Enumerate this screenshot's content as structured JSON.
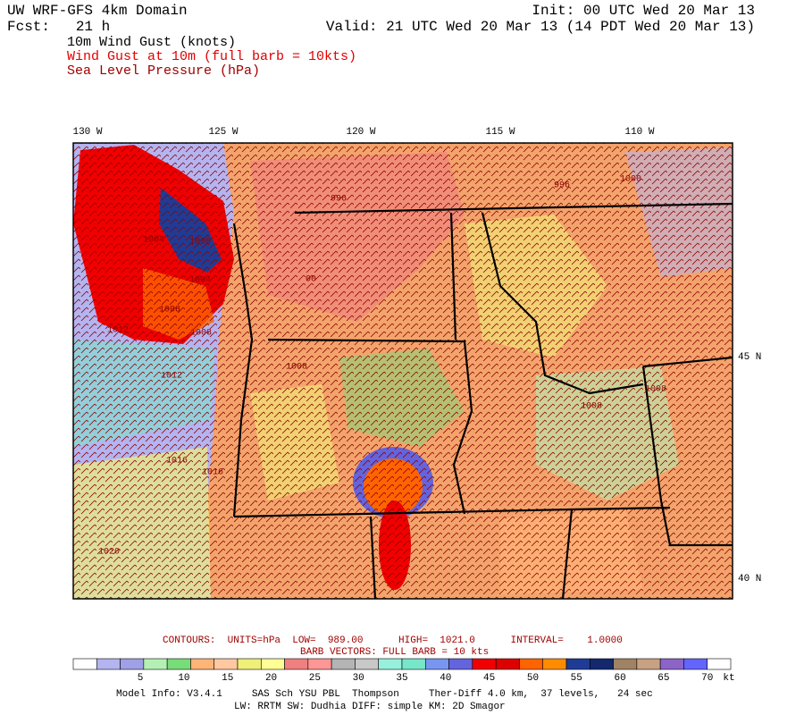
{
  "header": {
    "left": [
      "UW WRF-GFS 4km Domain",
      "Fcst:   21 h"
    ],
    "right": [
      "Init: 00 UTC Wed 20 Mar 13",
      "Valid: 21 UTC Wed 20 Mar 13 (14 PDT Wed 20 Mar 13)"
    ],
    "fields": [
      "10m Wind Gust (knots)",
      "Wind Gust at 10m (full barb = 10kts)",
      "Sea Level Pressure (hPa)"
    ]
  },
  "map": {
    "longitude_labels": [
      "130 W",
      "125 W",
      "120 W",
      "115 W",
      "110 W"
    ],
    "latitude_labels": [
      "45 N",
      "40 N"
    ],
    "contour_labels": [
      "996",
      "996",
      "1000",
      "1004",
      "1000",
      "1004",
      "1008",
      "1012",
      "1008",
      "1008",
      "1012",
      "1016",
      "1016",
      "1020",
      "1008",
      "1008",
      "00"
    ]
  },
  "footer": {
    "contours": "CONTOURS:  UNITS=hPa  LOW=  989.00      HIGH=  1021.0      INTERVAL=    1.0000",
    "barbs": "BARB VECTORS:  FULL BARB = 10 kts",
    "colorbar": {
      "labels": [
        5,
        10,
        15,
        20,
        25,
        30,
        35,
        40,
        45,
        50,
        55,
        60,
        65,
        70
      ],
      "unit": "kt",
      "colors": [
        "#ffffff",
        "#b4b4f0",
        "#a0a0e6",
        "#b4f0b4",
        "#78dc78",
        "#ffb478",
        "#ffc8a0",
        "#f0f078",
        "#ffff96",
        "#f08080",
        "#ff9696",
        "#b4b4b4",
        "#c8c8c8",
        "#96f0dc",
        "#78e6c8",
        "#7896f0",
        "#6464dc",
        "#f00000",
        "#dc0000",
        "#ff6400",
        "#ff8c00",
        "#1e3c96",
        "#14286e",
        "#a08264",
        "#c8a082",
        "#8c64c8",
        "#6464ff",
        "#ffffff"
      ]
    },
    "model_info": [
      "Model Info: V3.4.1     SAS Sch YSU PBL  Thompson     Ther-Diff 4.0 km,  37 levels,   24 sec",
      "LW: RRTM SW: Dudhia  DIFF: simple KM: 2D Smagor"
    ]
  }
}
